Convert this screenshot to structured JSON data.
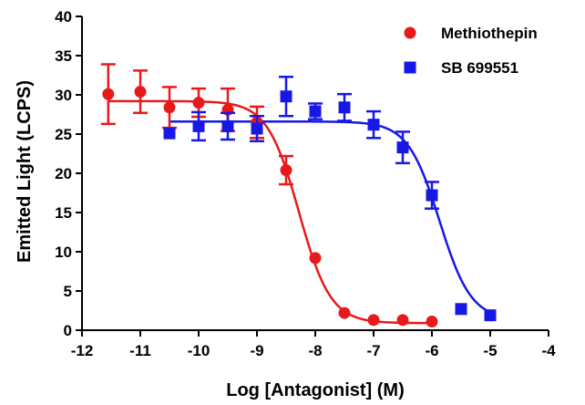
{
  "chart_data": {
    "type": "scatter",
    "xlabel": "Log [Antagonist] (M)",
    "ylabel": "Emitted Light (LCPS)",
    "xlim": [
      -12,
      -4
    ],
    "ylim": [
      0,
      40
    ],
    "xticks": [
      -12,
      -11,
      -10,
      -9,
      -8,
      -7,
      -6,
      -5,
      -4
    ],
    "yticks": [
      0,
      5,
      10,
      15,
      20,
      25,
      30,
      35,
      40
    ],
    "grid": false,
    "legend_position": "top-right",
    "series": [
      {
        "name": "Methiothepin",
        "color": "#e8191b",
        "marker": "circle",
        "points": [
          {
            "x": -11.55,
            "y": 30.1,
            "err": 3.8
          },
          {
            "x": -11.0,
            "y": 30.4,
            "err": 2.7
          },
          {
            "x": -10.5,
            "y": 28.4,
            "err": 2.6
          },
          {
            "x": -10.0,
            "y": 29.0,
            "err": 1.8
          },
          {
            "x": -9.5,
            "y": 28.1,
            "err": 2.7
          },
          {
            "x": -9.0,
            "y": 26.5,
            "err": 2.0
          },
          {
            "x": -8.5,
            "y": 20.4,
            "err": 1.8
          },
          {
            "x": -8.0,
            "y": 9.2,
            "err": 0
          },
          {
            "x": -7.5,
            "y": 2.2,
            "err": 0
          },
          {
            "x": -7.0,
            "y": 1.3,
            "err": 0
          },
          {
            "x": -6.5,
            "y": 1.3,
            "err": 0
          },
          {
            "x": -6.0,
            "y": 1.1,
            "err": 0
          }
        ],
        "fit": {
          "top": 29.2,
          "bottom": 0.9,
          "log_ic50": -8.28,
          "hill": -1.6
        }
      },
      {
        "name": "SB 699551",
        "color": "#1818e6",
        "marker": "square",
        "points": [
          {
            "x": -10.5,
            "y": 25.1,
            "err": 0
          },
          {
            "x": -10.0,
            "y": 26.0,
            "err": 1.8
          },
          {
            "x": -9.5,
            "y": 26.0,
            "err": 1.7
          },
          {
            "x": -9.0,
            "y": 25.7,
            "err": 1.6
          },
          {
            "x": -8.5,
            "y": 29.8,
            "err": 2.5
          },
          {
            "x": -8.0,
            "y": 27.9,
            "err": 1.0
          },
          {
            "x": -7.5,
            "y": 28.4,
            "err": 1.7
          },
          {
            "x": -7.0,
            "y": 26.2,
            "err": 1.7
          },
          {
            "x": -6.5,
            "y": 23.3,
            "err": 2.0
          },
          {
            "x": -6.0,
            "y": 17.2,
            "err": 1.7
          },
          {
            "x": -5.5,
            "y": 2.7,
            "err": 0
          },
          {
            "x": -5.0,
            "y": 1.9,
            "err": 0
          }
        ],
        "fit": {
          "top": 26.6,
          "bottom": 1.3,
          "log_ic50": -5.87,
          "hill": -1.6
        }
      }
    ]
  }
}
